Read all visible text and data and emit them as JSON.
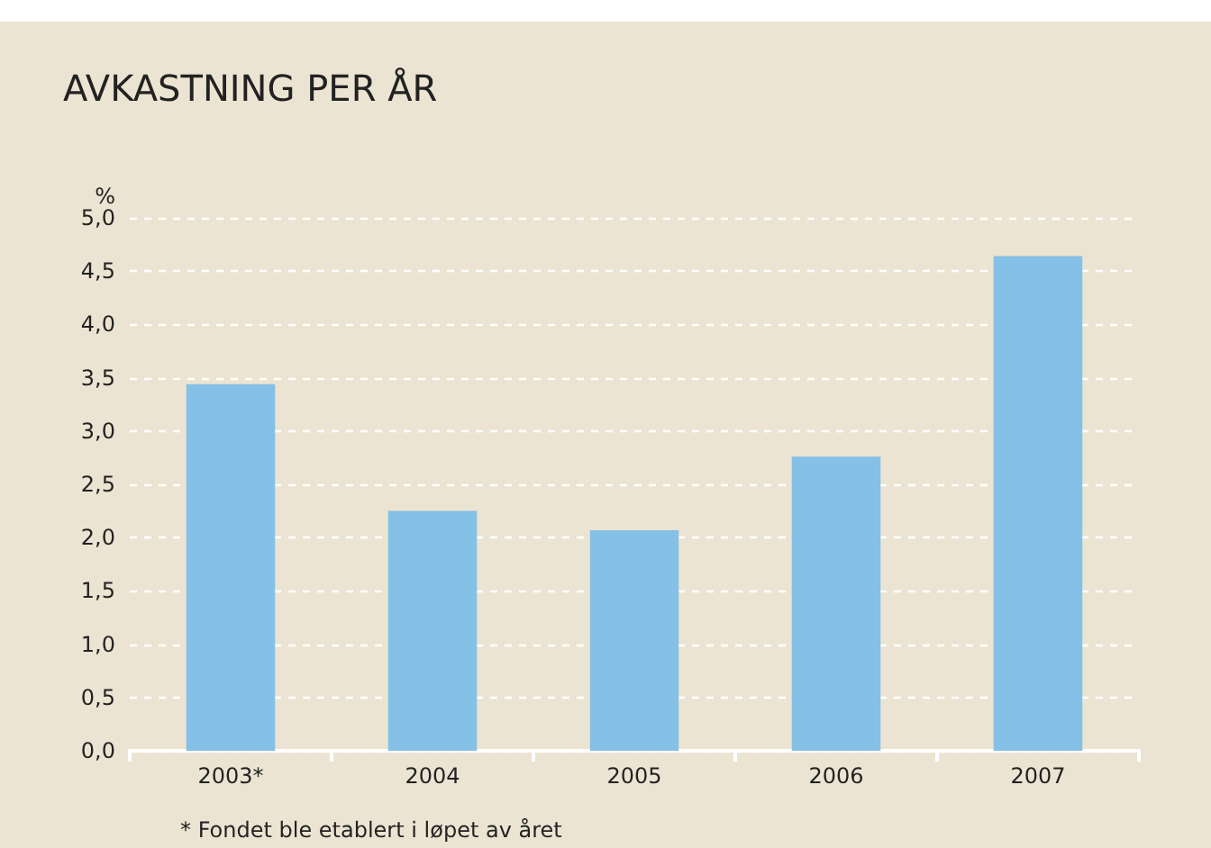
{
  "chart_data": {
    "type": "bar",
    "title": "AVKASTNING PER ÅR",
    "ylabel": "%",
    "categories": [
      "2003*",
      "2004",
      "2005",
      "2006",
      "2007"
    ],
    "values": [
      3.44,
      2.25,
      2.07,
      2.76,
      4.64
    ],
    "color": "#85c0e6",
    "ylim": [
      0,
      5
    ],
    "yticks": [
      {
        "value": 0,
        "label": "0,0"
      },
      {
        "value": 0.5,
        "label": "0,5"
      },
      {
        "value": 1,
        "label": "1,0"
      },
      {
        "value": 1.5,
        "label": "1,5"
      },
      {
        "value": 2,
        "label": "2,0"
      },
      {
        "value": 2.5,
        "label": "2,5"
      },
      {
        "value": 3,
        "label": "3,0"
      },
      {
        "value": 3.5,
        "label": "3,5"
      },
      {
        "value": 4,
        "label": "4,0"
      },
      {
        "value": 4.5,
        "label": "4,5"
      },
      {
        "value": 5,
        "label": "5,0"
      }
    ],
    "grid": "y",
    "annotations": [
      "* Fondet ble etablert i løpet av året"
    ]
  }
}
